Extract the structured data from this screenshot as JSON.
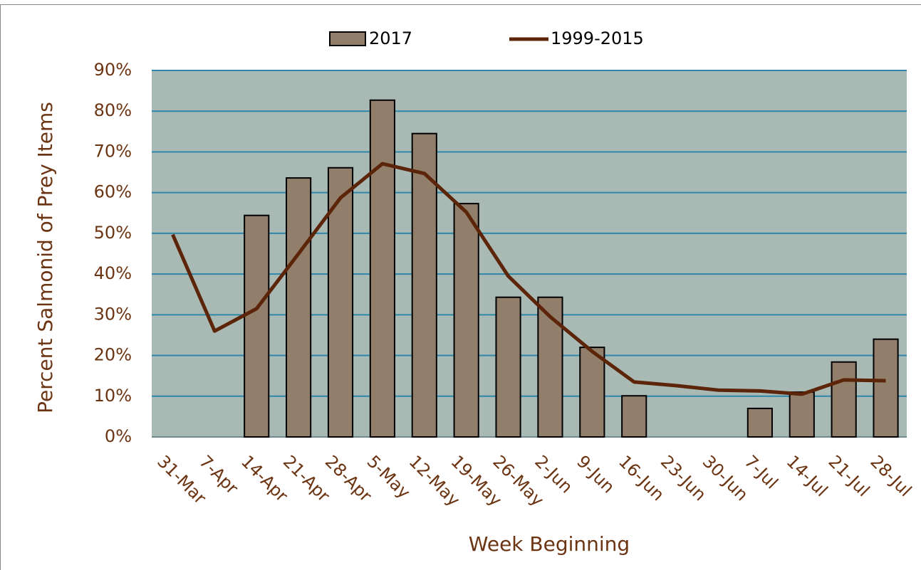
{
  "chart_data": {
    "type": "bar-line",
    "x_label": "Week Beginning",
    "y_label": "Percent Salmonid of Prey Items",
    "categories": [
      "31-Mar",
      "7-Apr",
      "14-Apr",
      "21-Apr",
      "28-Apr",
      "5-May",
      "12-May",
      "19-May",
      "26-May",
      "2-Jun",
      "9-Jun",
      "16-Jun",
      "23-Jun",
      "30-Jun",
      "7-Jul",
      "14-Jul",
      "21-Jul",
      "28-Jul"
    ],
    "series": [
      {
        "name": "2017",
        "type": "bar",
        "color": "#917f6b",
        "values": [
          null,
          null,
          54.4,
          63.6,
          66.1,
          82.7,
          74.5,
          57.3,
          34.3,
          34.3,
          22.0,
          10.1,
          null,
          null,
          7.0,
          11.0,
          18.4,
          24.0
        ]
      },
      {
        "name": "1999-2015",
        "type": "line",
        "color": "#5c2408",
        "values": [
          49.7,
          26.0,
          31.5,
          45.0,
          58.7,
          67.1,
          64.7,
          55.2,
          39.5,
          29.5,
          21.0,
          13.5,
          12.6,
          11.5,
          11.3,
          10.5,
          14.0,
          13.8
        ]
      }
    ],
    "ylim": [
      0,
      90
    ],
    "yticks": [
      {
        "value": 0,
        "label": "0%"
      },
      {
        "value": 10,
        "label": "10%"
      },
      {
        "value": 20,
        "label": "20%"
      },
      {
        "value": 30,
        "label": "30%"
      },
      {
        "value": 40,
        "label": "40%"
      },
      {
        "value": 50,
        "label": "50%"
      },
      {
        "value": 60,
        "label": "60%"
      },
      {
        "value": 70,
        "label": "70%"
      },
      {
        "value": 80,
        "label": "80%"
      },
      {
        "value": 90,
        "label": "90%"
      }
    ],
    "grid": true,
    "grid_color": "#2e87a8",
    "plot_background": "#a9b9b4",
    "legend_position": "top"
  }
}
